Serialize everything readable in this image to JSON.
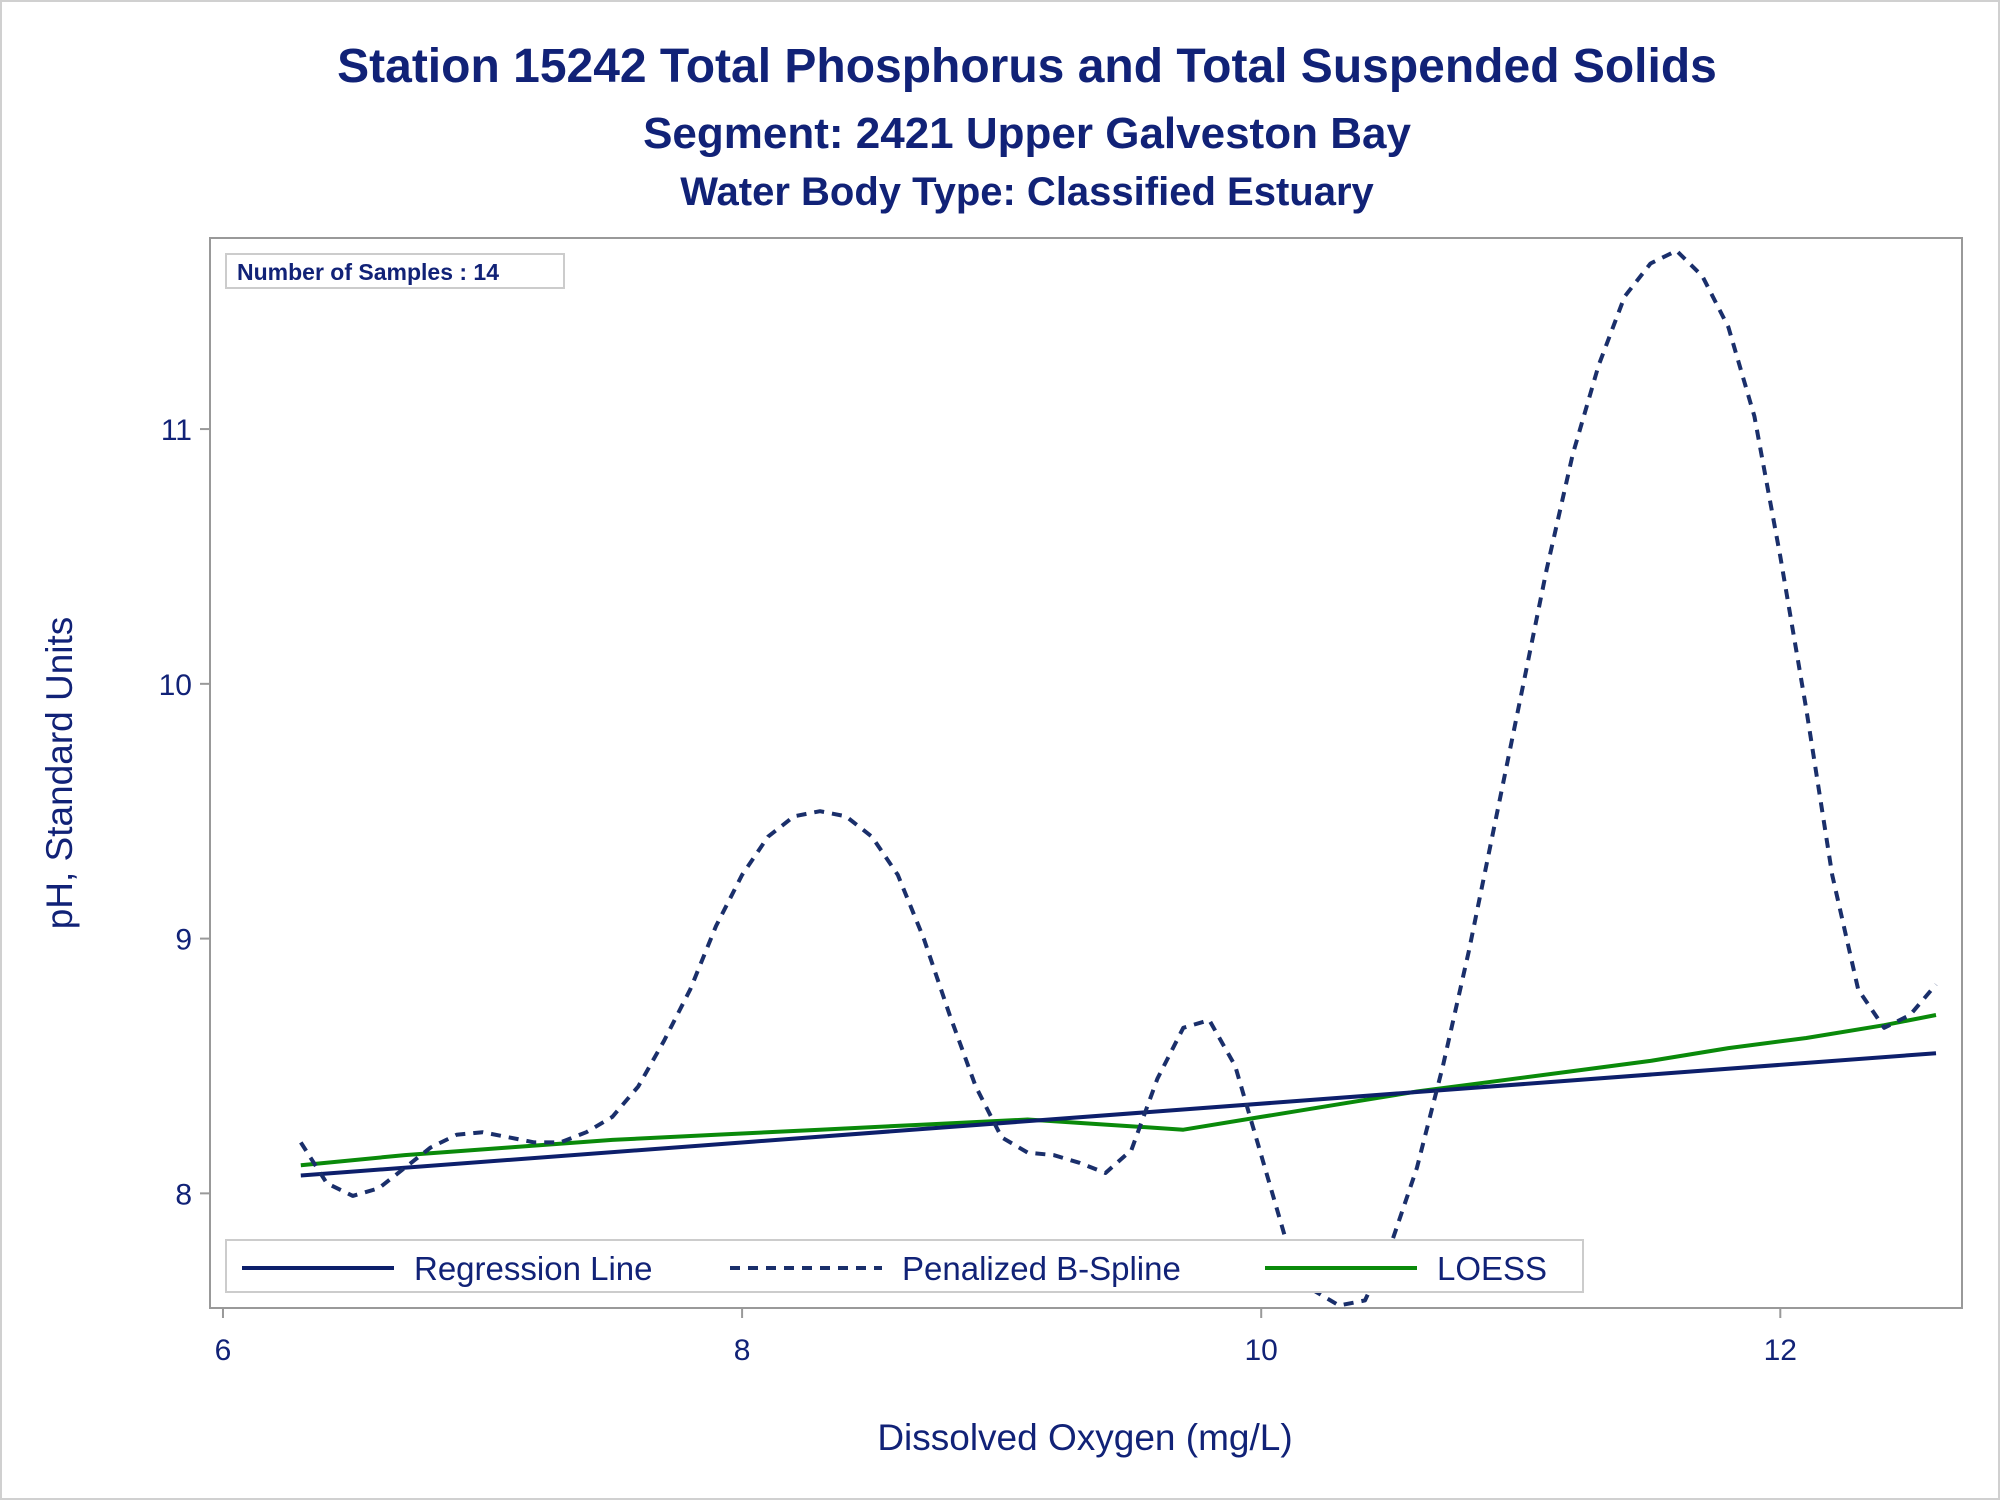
{
  "chart_data": {
    "type": "line",
    "title": "Station 15242  Total Phosphorus and Total Suspended Solids",
    "subtitle": "Segment: 2421  Upper Galveston Bay",
    "subtitle2": "Water Body Type: Classified Estuary",
    "xlabel": "Dissolved Oxygen (mg/L)",
    "ylabel": "pH, Standard Units",
    "xlim": [
      5.95,
      12.7
    ],
    "ylim": [
      7.55,
      11.75
    ],
    "xticks": [
      "6",
      "8",
      "10",
      "12"
    ],
    "yticks": [
      "8",
      "9",
      "10",
      "11"
    ],
    "grid": false,
    "legend_position": "bottom-left inside",
    "inset": "Number of Samples : 14",
    "colors": {
      "regression": "#0d1f6b",
      "spline": "#1a2f6b",
      "loess": "#0a8a0a",
      "text": "#112277",
      "frame": "#999999"
    },
    "series": [
      {
        "name": "Regression Line",
        "style": "solid",
        "x": [
          6.3,
          12.6
        ],
        "y": [
          8.07,
          8.55
        ]
      },
      {
        "name": "Penalized B-Spline",
        "style": "dashed",
        "x": [
          6.3,
          6.4,
          6.5,
          6.6,
          6.7,
          6.8,
          6.9,
          7.0,
          7.1,
          7.2,
          7.3,
          7.4,
          7.5,
          7.6,
          7.7,
          7.8,
          7.9,
          8.0,
          8.1,
          8.2,
          8.3,
          8.4,
          8.5,
          8.6,
          8.7,
          8.8,
          8.9,
          9.0,
          9.1,
          9.2,
          9.3,
          9.4,
          9.5,
          9.6,
          9.7,
          9.8,
          9.9,
          10.0,
          10.1,
          10.2,
          10.3,
          10.4,
          10.5,
          10.6,
          10.7,
          10.8,
          10.9,
          11.0,
          11.1,
          11.2,
          11.3,
          11.4,
          11.5,
          11.6,
          11.7,
          11.8,
          11.9,
          12.0,
          12.1,
          12.2,
          12.3,
          12.4,
          12.5,
          12.6
        ],
        "y": [
          8.2,
          8.04,
          7.99,
          8.02,
          8.1,
          8.18,
          8.23,
          8.24,
          8.22,
          8.2,
          8.2,
          8.24,
          8.3,
          8.42,
          8.6,
          8.8,
          9.05,
          9.25,
          9.4,
          9.48,
          9.5,
          9.48,
          9.4,
          9.25,
          9.0,
          8.7,
          8.42,
          8.22,
          8.16,
          8.15,
          8.12,
          8.08,
          8.17,
          8.45,
          8.65,
          8.68,
          8.5,
          8.15,
          7.8,
          7.62,
          7.56,
          7.58,
          7.8,
          8.1,
          8.5,
          8.95,
          9.45,
          9.95,
          10.45,
          10.9,
          11.25,
          11.52,
          11.65,
          11.7,
          11.6,
          11.4,
          11.05,
          10.5,
          9.9,
          9.25,
          8.8,
          8.65,
          8.7,
          8.82
        ]
      },
      {
        "name": "LOESS",
        "style": "solid",
        "x": [
          6.3,
          6.7,
          7.1,
          7.5,
          7.9,
          8.3,
          8.7,
          9.1,
          9.4,
          9.7,
          10.0,
          10.3,
          10.6,
          10.9,
          11.2,
          11.5,
          11.8,
          12.1,
          12.4,
          12.6
        ],
        "y": [
          8.11,
          8.15,
          8.18,
          8.21,
          8.23,
          8.25,
          8.27,
          8.29,
          8.27,
          8.25,
          8.3,
          8.35,
          8.4,
          8.44,
          8.48,
          8.52,
          8.57,
          8.61,
          8.66,
          8.7
        ]
      }
    ]
  }
}
